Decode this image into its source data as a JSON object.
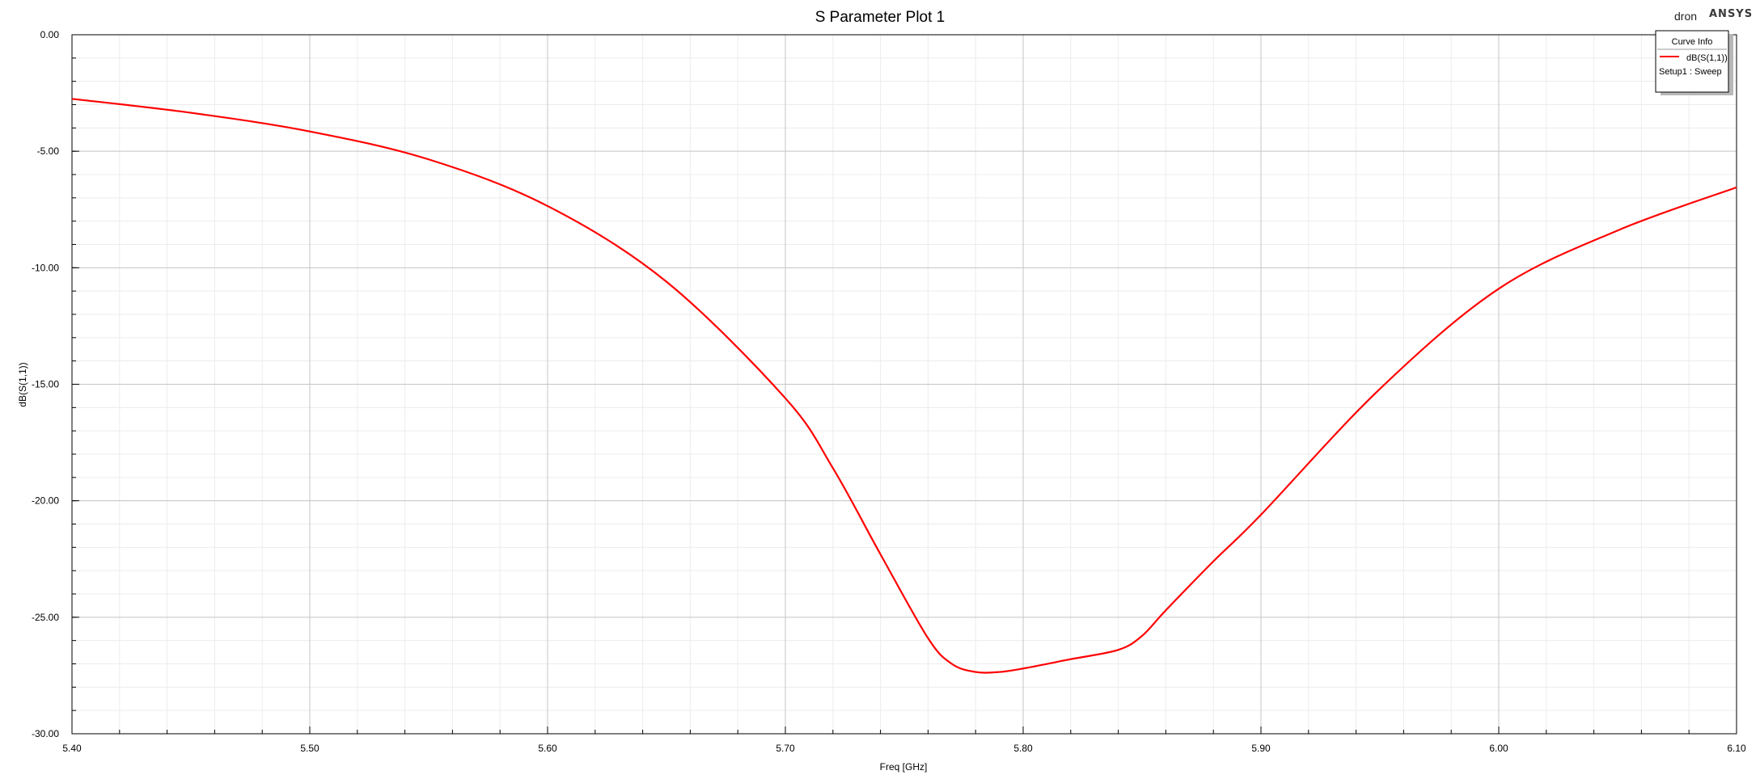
{
  "brand": {
    "user": "dron",
    "logo": "ANSYS"
  },
  "legend": {
    "header": "Curve Info",
    "entries": [
      {
        "name": "dB(S(1,1))",
        "color": "#ff0000"
      }
    ],
    "setup": "Setup1 : Sweep"
  },
  "chart_data": {
    "type": "line",
    "title": "S Parameter Plot 1",
    "xlabel": "Freq [GHz]",
    "ylabel": "dB(S(1,1))",
    "xlim": [
      5.4,
      6.1
    ],
    "ylim": [
      -30.0,
      0.0
    ],
    "x_ticks": [
      "5.40",
      "5.50",
      "5.60",
      "5.70",
      "5.80",
      "5.90",
      "6.00",
      "6.10"
    ],
    "y_ticks": [
      "0.00",
      "-5.00",
      "-10.00",
      "-15.00",
      "-20.00",
      "-25.00",
      "-30.00"
    ],
    "grid": true,
    "legend_position": "top-right",
    "series": [
      {
        "name": "dB(S(1,1))",
        "color": "#ff0000",
        "x": [
          5.4,
          5.45,
          5.5,
          5.55,
          5.6,
          5.65,
          5.7,
          5.72,
          5.74,
          5.76,
          5.77,
          5.78,
          5.79,
          5.8,
          5.82,
          5.84,
          5.85,
          5.86,
          5.88,
          5.9,
          5.95,
          6.0,
          6.05,
          6.1
        ],
        "values": [
          -2.75,
          -3.35,
          -4.15,
          -5.35,
          -7.35,
          -10.6,
          -15.6,
          -18.6,
          -22.3,
          -25.9,
          -27.0,
          -27.35,
          -27.35,
          -27.2,
          -26.8,
          -26.4,
          -25.8,
          -24.7,
          -22.6,
          -20.6,
          -15.2,
          -10.9,
          -8.4,
          -6.55
        ]
      }
    ]
  }
}
